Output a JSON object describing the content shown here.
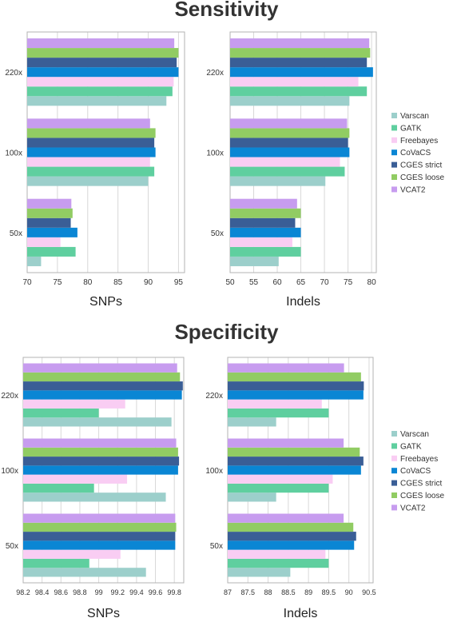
{
  "titles": {
    "top": "Sensitivity",
    "bottom": "Specificity"
  },
  "legend": {
    "entries": [
      "Varscan",
      "GATK",
      "Freebayes",
      "CoVaCS",
      "CGES strict",
      "CGES loose",
      "VCAT2"
    ],
    "colors": [
      "#9ccfcb",
      "#5fcf9f",
      "#f9cdf3",
      "#0a86d4",
      "#3a5e96",
      "#91cc63",
      "#c79cef"
    ]
  },
  "chart_data": [
    {
      "type": "bar",
      "orientation": "horizontal",
      "section": "Sensitivity",
      "xlabel": "SNPs",
      "categories": [
        "220x",
        "100x",
        "50x"
      ],
      "xlim": [
        70,
        96
      ],
      "xticks": [
        "70",
        "75",
        "80",
        "85",
        "90",
        "95"
      ],
      "series": [
        {
          "name": "Varscan",
          "values": [
            93.0,
            90.0,
            72.3
          ]
        },
        {
          "name": "GATK",
          "values": [
            94.0,
            91.0,
            78.0
          ]
        },
        {
          "name": "Freebayes",
          "values": [
            94.2,
            90.3,
            75.5
          ]
        },
        {
          "name": "CoVaCS",
          "values": [
            95.0,
            91.2,
            78.3
          ]
        },
        {
          "name": "CGES strict",
          "values": [
            94.7,
            91.0,
            77.2
          ]
        },
        {
          "name": "CGES loose",
          "values": [
            95.0,
            91.2,
            77.5
          ]
        },
        {
          "name": "VCAT2",
          "values": [
            94.3,
            90.3,
            77.3
          ]
        }
      ]
    },
    {
      "type": "bar",
      "orientation": "horizontal",
      "section": "Sensitivity",
      "xlabel": "Indels",
      "categories": [
        "220x",
        "100x",
        "50x"
      ],
      "xlim": [
        50,
        81
      ],
      "xticks": [
        "50",
        "55",
        "60",
        "65",
        "70",
        "75",
        "80"
      ],
      "series": [
        {
          "name": "Varscan",
          "values": [
            75.3,
            70.2,
            60.3
          ]
        },
        {
          "name": "GATK",
          "values": [
            79.0,
            74.3,
            65.0
          ]
        },
        {
          "name": "Freebayes",
          "values": [
            77.2,
            73.3,
            63.2
          ]
        },
        {
          "name": "CoVaCS",
          "values": [
            80.3,
            75.3,
            65.0
          ]
        },
        {
          "name": "CGES strict",
          "values": [
            79.0,
            75.0,
            63.8
          ]
        },
        {
          "name": "CGES loose",
          "values": [
            79.7,
            75.3,
            65.0
          ]
        },
        {
          "name": "VCAT2",
          "values": [
            79.5,
            74.8,
            64.2
          ]
        }
      ]
    },
    {
      "type": "bar",
      "orientation": "horizontal",
      "section": "Specificity",
      "xlabel": "SNPs",
      "categories": [
        "220x",
        "100x",
        "50x"
      ],
      "xlim": [
        98.2,
        99.9
      ],
      "xticks": [
        "98.2",
        "98.4",
        "98.6",
        "98.8",
        "99",
        "99.2",
        "99.4",
        "99.6",
        "99.8"
      ],
      "series": [
        {
          "name": "Varscan",
          "values": [
            99.77,
            99.71,
            99.5
          ]
        },
        {
          "name": "GATK",
          "values": [
            99.0,
            98.95,
            98.9
          ]
        },
        {
          "name": "Freebayes",
          "values": [
            99.28,
            99.3,
            99.23
          ]
        },
        {
          "name": "CoVaCS",
          "values": [
            99.88,
            99.84,
            99.81
          ]
        },
        {
          "name": "CGES strict",
          "values": [
            99.89,
            99.85,
            99.81
          ]
        },
        {
          "name": "CGES loose",
          "values": [
            99.86,
            99.84,
            99.82
          ]
        },
        {
          "name": "VCAT2",
          "values": [
            99.83,
            99.82,
            99.81
          ]
        }
      ]
    },
    {
      "type": "bar",
      "orientation": "horizontal",
      "section": "Specificity",
      "xlabel": "Indels",
      "categories": [
        "220x",
        "100x",
        "50x"
      ],
      "xlim": [
        87,
        90.6
      ],
      "xticks": [
        "87",
        "87.5",
        "88",
        "88.5",
        "89",
        "89.5",
        "90",
        "90.5"
      ],
      "series": [
        {
          "name": "Varscan",
          "values": [
            88.2,
            88.2,
            88.55
          ]
        },
        {
          "name": "GATK",
          "values": [
            89.5,
            89.5,
            89.5
          ]
        },
        {
          "name": "Freebayes",
          "values": [
            89.33,
            89.6,
            89.42
          ]
        },
        {
          "name": "CoVaCS",
          "values": [
            90.36,
            90.3,
            90.13
          ]
        },
        {
          "name": "CGES strict",
          "values": [
            90.37,
            90.36,
            90.18
          ]
        },
        {
          "name": "CGES loose",
          "values": [
            90.3,
            90.27,
            90.11
          ]
        },
        {
          "name": "VCAT2",
          "values": [
            89.88,
            89.87,
            89.87
          ]
        }
      ]
    }
  ]
}
